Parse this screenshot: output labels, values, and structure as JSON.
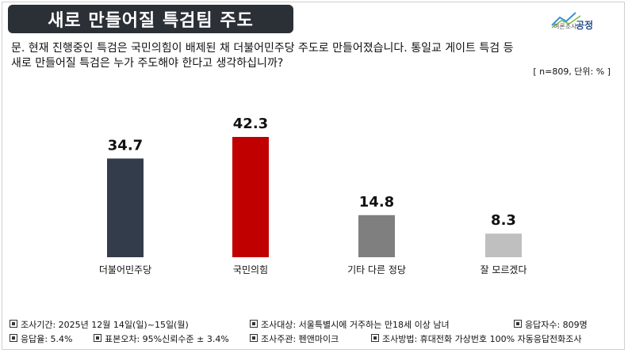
{
  "title": "새로 만들어질 특검팀 주도",
  "logo": {
    "small_text": "여론조사",
    "brand": "공정"
  },
  "question": {
    "line1": "문. 현재 진행중인 특검은 국민의힘이 배제된 채 더불어민주당 주도로 만들어졌습니다. 통일교 게이트 특검 등",
    "line2": "새로 만들어질 특검은 누가 주도해야 한다고 생각하십니까?"
  },
  "unit_note": "[ n=809, 단위: % ]",
  "chart_data": {
    "type": "bar",
    "title": "새로 만들어질 특검팀 주도",
    "categories": [
      "더불어민주당",
      "국민의힘",
      "기타 다른 정당",
      "잘 모르겠다"
    ],
    "values": [
      34.7,
      42.3,
      14.8,
      8.3
    ],
    "colors": [
      "#333c4b",
      "#c00000",
      "#7f7f7f",
      "#bfbfbf"
    ],
    "ylim": [
      0,
      42.3
    ],
    "grid": false,
    "legend": "none"
  },
  "footer": {
    "row1": [
      "조사기간: 2025년 12월 14일(일)~15일(월)",
      "조사대상: 서울특별시에 거주하는 만18세 이상 남녀",
      "응답자수: 809명"
    ],
    "row2": [
      "응답율: 5.4%",
      "표본오차: 95%신뢰수준 ± 3.4%",
      "조사주관: 펜앤마이크",
      "조사방법: 휴대전화 가상번호 100% 자동응답전화조사"
    ]
  }
}
